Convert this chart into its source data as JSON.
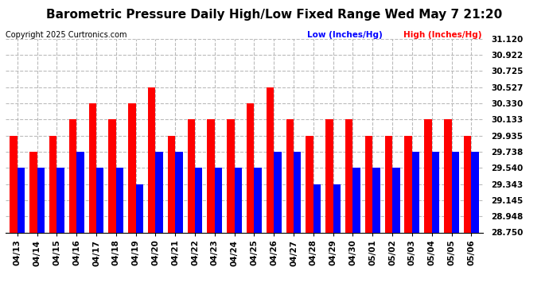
{
  "title": "Barometric Pressure Daily High/Low Fixed Range Wed May 7 21:20",
  "copyright": "Copyright 2025 Curtronics.com",
  "legend_low": "Low (Inches/Hg)",
  "legend_high": "High (Inches/Hg)",
  "low_color": "blue",
  "high_color": "red",
  "background_color": "#ffffff",
  "ylim_lo": 28.75,
  "ylim_hi": 31.12,
  "yticks": [
    28.75,
    28.948,
    29.145,
    29.343,
    29.54,
    29.738,
    29.935,
    30.133,
    30.33,
    30.527,
    30.725,
    30.922,
    31.12
  ],
  "dates": [
    "04/13",
    "04/14",
    "04/15",
    "04/16",
    "04/17",
    "04/18",
    "04/19",
    "04/20",
    "04/21",
    "04/22",
    "04/23",
    "04/24",
    "04/25",
    "04/26",
    "04/27",
    "04/28",
    "04/29",
    "04/30",
    "05/01",
    "05/02",
    "05/03",
    "05/04",
    "05/05",
    "05/06"
  ],
  "high_values": [
    29.935,
    29.738,
    29.935,
    30.133,
    30.33,
    30.133,
    30.33,
    30.527,
    29.935,
    30.133,
    30.133,
    30.133,
    30.33,
    30.527,
    30.133,
    29.935,
    30.133,
    30.133,
    29.935,
    29.935,
    29.935,
    30.133,
    30.133,
    29.935
  ],
  "low_values": [
    29.54,
    29.54,
    29.54,
    29.738,
    29.54,
    29.54,
    29.343,
    29.738,
    29.738,
    29.54,
    29.54,
    29.54,
    29.54,
    29.738,
    29.738,
    29.343,
    29.343,
    29.54,
    29.54,
    29.54,
    29.738,
    29.738,
    29.738,
    29.738
  ],
  "bar_width": 0.38,
  "grid_color": "#b0b0b0",
  "grid_alpha": 0.85,
  "title_fontsize": 11,
  "tick_fontsize": 7.5
}
